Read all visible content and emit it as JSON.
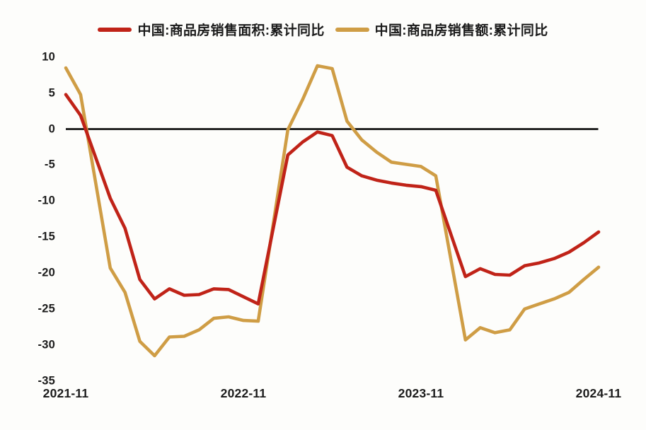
{
  "chart_data": {
    "type": "line",
    "title": "",
    "xlabel": "",
    "ylabel": "",
    "unit": "percent",
    "ylim": [
      -35,
      10
    ],
    "grid": false,
    "legend_position": "top-center",
    "zero_line": true,
    "x_range": [
      "2021-11",
      "2024-11"
    ],
    "x": [
      "2021-11",
      "2021-12",
      "2022-02",
      "2022-03",
      "2022-04",
      "2022-05",
      "2022-06",
      "2022-07",
      "2022-08",
      "2022-09",
      "2022-10",
      "2022-11",
      "2022-12",
      "2023-02",
      "2023-03",
      "2023-04",
      "2023-05",
      "2023-06",
      "2023-07",
      "2023-08",
      "2023-09",
      "2023-10",
      "2023-11",
      "2023-12",
      "2024-02",
      "2024-03",
      "2024-04",
      "2024-05",
      "2024-06",
      "2024-07",
      "2024-08",
      "2024-09",
      "2024-10",
      "2024-11"
    ],
    "series": [
      {
        "name": "中国:商品房销售面积:累计同比",
        "color": "#c02318",
        "values": [
          4.8,
          1.9,
          -9.6,
          -13.8,
          -20.9,
          -23.6,
          -22.2,
          -23.1,
          -23.0,
          -22.2,
          -22.3,
          -23.3,
          -24.3,
          -3.6,
          -1.8,
          -0.4,
          -0.9,
          -5.3,
          -6.5,
          -7.1,
          -7.5,
          -7.8,
          -8.0,
          -8.5,
          -20.5,
          -19.4,
          -20.2,
          -20.3,
          -19.0,
          -18.6,
          -18.0,
          -17.1,
          -15.8,
          -14.3
        ]
      },
      {
        "name": "中国:商品房销售额:累计同比",
        "color": "#cf9d45",
        "values": [
          8.5,
          4.8,
          -19.3,
          -22.7,
          -29.5,
          -31.5,
          -28.9,
          -28.8,
          -27.9,
          -26.3,
          -26.1,
          -26.6,
          -26.7,
          -0.1,
          4.1,
          8.8,
          8.4,
          1.1,
          -1.5,
          -3.2,
          -4.6,
          -4.9,
          -5.2,
          -6.5,
          -29.3,
          -27.6,
          -28.3,
          -27.9,
          -25.0,
          -24.3,
          -23.6,
          -22.7,
          -20.9,
          -19.2
        ]
      }
    ],
    "ytick_labels": [
      "10",
      "5",
      "0",
      "-5",
      "-10",
      "-15",
      "-20",
      "-25",
      "-30",
      "-35"
    ],
    "xtick_labels": [
      "2021-11",
      "2022-11",
      "2023-11",
      "2024-11"
    ],
    "axis_color": "#141414",
    "background_color": "#fdfdfb"
  }
}
